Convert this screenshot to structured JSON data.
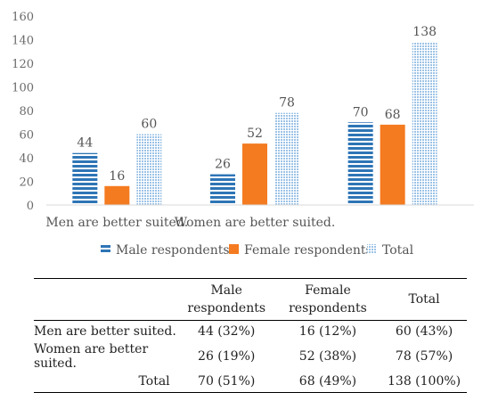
{
  "chart_data": {
    "type": "bar",
    "categories": [
      "Men are better suited.",
      "Women are better suited.",
      ""
    ],
    "series": [
      {
        "name": "Male respondents",
        "values": [
          44,
          26,
          70
        ],
        "color": "#2e75b6",
        "pattern": "horizontal-stripes"
      },
      {
        "name": "Female respondents",
        "values": [
          16,
          52,
          68
        ],
        "color": "#f47b20",
        "pattern": "solid"
      },
      {
        "name": "Total",
        "values": [
          60,
          78,
          138
        ],
        "color": "#9dc3e6",
        "pattern": "dots"
      }
    ],
    "ylim": [
      0,
      160
    ],
    "yticks": [
      0,
      20,
      40,
      60,
      80,
      100,
      120,
      140,
      160
    ],
    "grid": false,
    "legend": "bottom"
  },
  "table": {
    "headers": [
      "",
      "Male\nrespondents",
      "Female\nrespondents",
      "Total"
    ],
    "rows": [
      [
        "Men are better suited.",
        "44 (32%)",
        "16 (12%)",
        "60 (43%)"
      ],
      [
        "Women are better suited.",
        "26 (19%)",
        "52 (38%)",
        "78 (57%)"
      ],
      [
        "Total",
        "70 (51%)",
        "68 (49%)",
        "138 (100%)"
      ]
    ]
  }
}
